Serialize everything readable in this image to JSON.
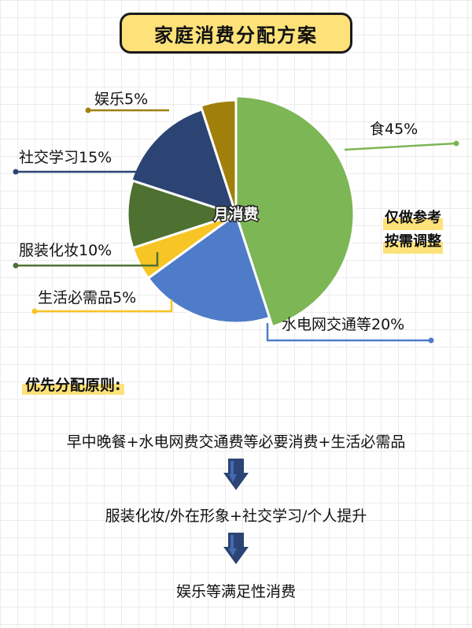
{
  "title": "家庭消费分配方案",
  "chart_data": {
    "type": "pie",
    "center_label": "月消费",
    "slices": [
      {
        "label": "食45%",
        "value": 45,
        "color": "#7db655"
      },
      {
        "label": "水电网交通等20%",
        "value": 20,
        "color": "#4f7cc9"
      },
      {
        "label": "生活必需品5%",
        "value": 5,
        "color": "#f7c525"
      },
      {
        "label": "服装化妆10%",
        "value": 10,
        "color": "#4e7031"
      },
      {
        "label": "社交学习15%",
        "value": 15,
        "color": "#2b4474"
      },
      {
        "label": "娱乐5%",
        "value": 5,
        "color": "#a0800a"
      }
    ]
  },
  "note": {
    "line1": "仅做参考",
    "line2": "按需调整"
  },
  "principles": {
    "title": "优先分配原则:",
    "steps": [
      "早中晚餐+水电网费交通费等必要消费+生活必需品",
      "服装化妆/外在形象+社交学习/个人提升",
      "娱乐等满足性消费"
    ]
  },
  "colors": {
    "accent": "#fde27a",
    "arrow": "#2b4474"
  }
}
